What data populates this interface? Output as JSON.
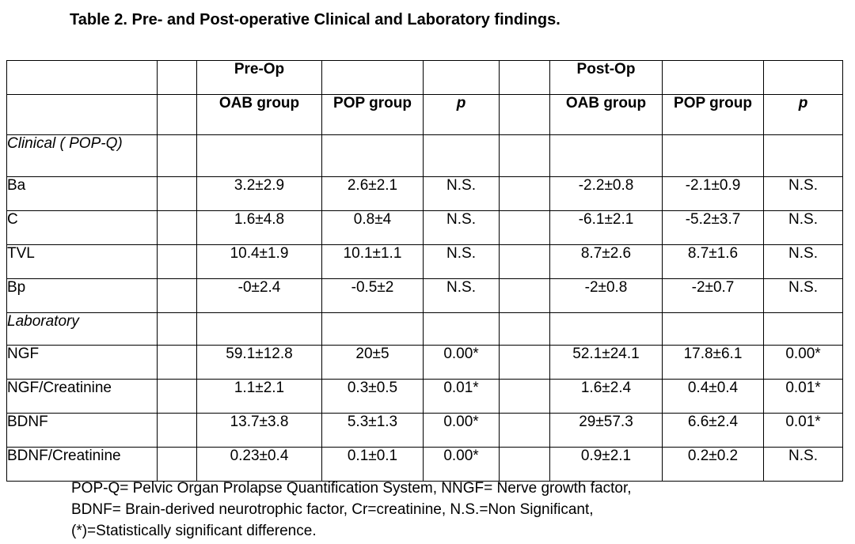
{
  "title": "Table 2. Pre- and Post-operative Clinical and Laboratory findings.",
  "table": {
    "phases": [
      "Pre-Op",
      "Post-Op"
    ],
    "columns": [
      "OAB group",
      "POP group",
      "p",
      "OAB group",
      "POP group",
      "p"
    ],
    "sections": [
      {
        "name": "Clinical ( POP-Q)",
        "rows": [
          {
            "label": "Ba",
            "values": [
              "3.2±2.9",
              "2.6±2.1",
              "N.S.",
              "-2.2±0.8",
              "-2.1±0.9",
              "N.S."
            ]
          },
          {
            "label": "C",
            "values": [
              "1.6±4.8",
              "0.8±4",
              "N.S.",
              "-6.1±2.1",
              "-5.2±3.7",
              "N.S."
            ]
          },
          {
            "label": "TVL",
            "values": [
              "10.4±1.9",
              "10.1±1.1",
              "N.S.",
              "8.7±2.6",
              "8.7±1.6",
              "N.S."
            ]
          },
          {
            "label": "Bp",
            "values": [
              "-0±2.4",
              "-0.5±2",
              "N.S.",
              "-2±0.8",
              "-2±0.7",
              "N.S."
            ]
          }
        ]
      },
      {
        "name": "Laboratory",
        "rows": [
          {
            "label": "NGF",
            "values": [
              "59.1±12.8",
              "20±5",
              "0.00*",
              "52.1±24.1",
              "17.8±6.1",
              "0.00*"
            ]
          },
          {
            "label": "NGF/Creatinine",
            "values": [
              "1.1±2.1",
              "0.3±0.5",
              "0.01*",
              "1.6±2.4",
              "0.4±0.4",
              "0.01*"
            ]
          },
          {
            "label": "BDNF",
            "values": [
              "13.7±3.8",
              "5.3±1.3",
              "0.00*",
              "29±57.3",
              "6.6±2.4",
              "0.01*"
            ]
          },
          {
            "label": "BDNF/Creatinine",
            "values": [
              "0.23±0.4",
              "0.1±0.1",
              "0.00*",
              "0.9±2.1",
              "0.2±0.2",
              "N.S."
            ]
          }
        ]
      }
    ]
  },
  "footnote": [
    "POP-Q= Pelvic Organ Prolapse Quantification System, NNGF= Nerve growth factor,",
    "BDNF= Brain-derived neurotrophic factor, Cr=creatinine, N.S.=Non Significant,",
    "(*)=Statistically significant difference."
  ]
}
